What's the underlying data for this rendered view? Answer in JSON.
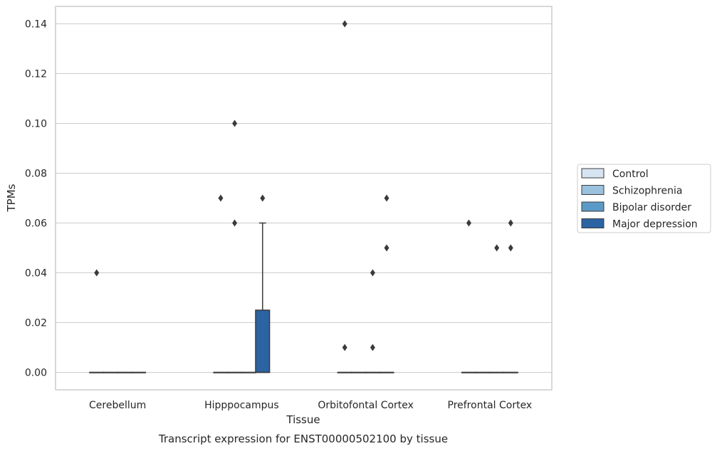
{
  "chart_data": {
    "type": "box",
    "xlabel": "Tissue",
    "ylabel": "TPMs",
    "caption": "Transcript expression for ENST00000502100 by tissue",
    "categories": [
      "Cerebellum",
      "Hipppocampus",
      "Orbitofontal Cortex",
      "Prefrontal Cortex"
    ],
    "ylim": [
      -0.007,
      0.147
    ],
    "yticks": [
      "0.00",
      "0.02",
      "0.04",
      "0.06",
      "0.08",
      "0.10",
      "0.12",
      "0.14"
    ],
    "grid": true,
    "legend_position": "right",
    "series": [
      {
        "name": "Control",
        "color": "#d6e4f2",
        "boxes": [
          {
            "q1": 0,
            "median": 0,
            "q3": 0,
            "whisker_low": 0,
            "whisker_high": 0,
            "outliers": [
              0.04
            ]
          },
          {
            "q1": 0,
            "median": 0,
            "q3": 0,
            "whisker_low": 0,
            "whisker_high": 0,
            "outliers": [
              0.07
            ]
          },
          {
            "q1": 0,
            "median": 0,
            "q3": 0,
            "whisker_low": 0,
            "whisker_high": 0,
            "outliers": [
              0.14,
              0.01
            ]
          },
          {
            "q1": 0,
            "median": 0,
            "q3": 0,
            "whisker_low": 0,
            "whisker_high": 0,
            "outliers": [
              0.06
            ]
          }
        ]
      },
      {
        "name": "Schizophrenia",
        "color": "#9ac2dd",
        "boxes": [
          {
            "q1": 0,
            "median": 0,
            "q3": 0,
            "whisker_low": 0,
            "whisker_high": 0,
            "outliers": []
          },
          {
            "q1": 0,
            "median": 0,
            "q3": 0,
            "whisker_low": 0,
            "whisker_high": 0,
            "outliers": [
              0.1,
              0.06
            ]
          },
          {
            "q1": 0,
            "median": 0,
            "q3": 0,
            "whisker_low": 0,
            "whisker_high": 0,
            "outliers": []
          },
          {
            "q1": 0,
            "median": 0,
            "q3": 0,
            "whisker_low": 0,
            "whisker_high": 0,
            "outliers": []
          }
        ]
      },
      {
        "name": "Bipolar disorder",
        "color": "#5b9ac8",
        "boxes": [
          {
            "q1": 0,
            "median": 0,
            "q3": 0,
            "whisker_low": 0,
            "whisker_high": 0,
            "outliers": []
          },
          {
            "q1": 0,
            "median": 0,
            "q3": 0,
            "whisker_low": 0,
            "whisker_high": 0,
            "outliers": []
          },
          {
            "q1": 0,
            "median": 0,
            "q3": 0,
            "whisker_low": 0,
            "whisker_high": 0,
            "outliers": [
              0.04,
              0.01
            ]
          },
          {
            "q1": 0,
            "median": 0,
            "q3": 0,
            "whisker_low": 0,
            "whisker_high": 0,
            "outliers": [
              0.05
            ]
          }
        ]
      },
      {
        "name": "Major depression",
        "color": "#2b63a3",
        "boxes": [
          {
            "q1": 0,
            "median": 0,
            "q3": 0,
            "whisker_low": 0,
            "whisker_high": 0,
            "outliers": []
          },
          {
            "q1": 0,
            "median": 0,
            "q3": 0.025,
            "whisker_low": 0,
            "whisker_high": 0.06,
            "outliers": [
              0.07
            ]
          },
          {
            "q1": 0,
            "median": 0,
            "q3": 0,
            "whisker_low": 0,
            "whisker_high": 0,
            "outliers": [
              0.07,
              0.05
            ]
          },
          {
            "q1": 0,
            "median": 0,
            "q3": 0,
            "whisker_low": 0,
            "whisker_high": 0,
            "outliers": [
              0.06,
              0.05
            ]
          }
        ]
      }
    ]
  }
}
